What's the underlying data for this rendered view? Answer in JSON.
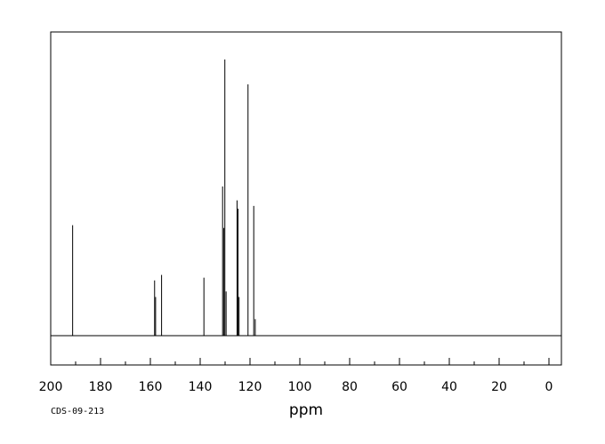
{
  "chart_data": {
    "type": "line",
    "title": "",
    "xlabel": "ppm",
    "ylabel": "",
    "xlim": [
      200,
      0
    ],
    "x_reversed": true,
    "grid": false,
    "legend": "none",
    "code": "CDS-09-213",
    "x_ticks": [
      "200",
      "180",
      "160",
      "140",
      "120",
      "100",
      "80",
      "60",
      "40",
      "20",
      "0"
    ],
    "peaks": [
      {
        "ppm": 191.2,
        "height": 0.4
      },
      {
        "ppm": 158.3,
        "height": 0.2
      },
      {
        "ppm": 157.9,
        "height": 0.14
      },
      {
        "ppm": 155.5,
        "height": 0.22
      },
      {
        "ppm": 138.5,
        "height": 0.21
      },
      {
        "ppm": 131.0,
        "height": 0.54
      },
      {
        "ppm": 130.5,
        "height": 0.39
      },
      {
        "ppm": 130.1,
        "height": 1.0
      },
      {
        "ppm": 129.6,
        "height": 0.16
      },
      {
        "ppm": 125.2,
        "height": 0.49
      },
      {
        "ppm": 124.8,
        "height": 0.46
      },
      {
        "ppm": 124.4,
        "height": 0.14
      },
      {
        "ppm": 120.8,
        "height": 0.91
      },
      {
        "ppm": 118.5,
        "height": 0.47
      },
      {
        "ppm": 117.9,
        "height": 0.06
      }
    ]
  }
}
